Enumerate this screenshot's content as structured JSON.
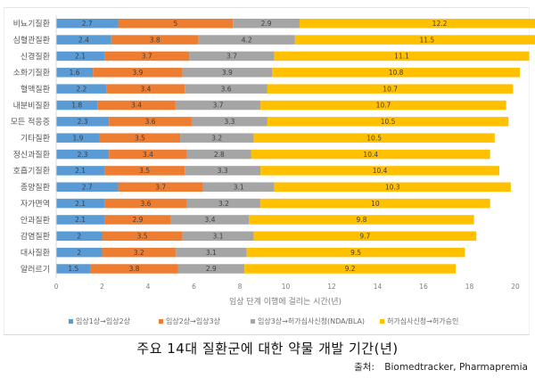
{
  "chart_data": {
    "type": "bar",
    "orientation": "horizontal",
    "stacked": true,
    "title": "주요 14대 질환군에 대한 약물 개발 기간(년)",
    "xlabel": "임상 단계 이행에 걸리는 시간(년)",
    "ylabel": "",
    "xlim": [
      0,
      20
    ],
    "xticks": [
      0,
      2,
      4,
      6,
      8,
      10,
      12,
      14,
      16,
      18,
      20
    ],
    "grid": false,
    "legend_position": "bottom",
    "categories": [
      "비뇨기질환",
      "심혈관질환",
      "신경질환",
      "소화기질환",
      "혈액질환",
      "내분비질환",
      "모든 적응증",
      "기타질환",
      "정신과질환",
      "호흡기질환",
      "종양질환",
      "자가면역",
      "안과질환",
      "감염질환",
      "대사질환",
      "알러르기"
    ],
    "series": [
      {
        "name": "임상1상→임상2상",
        "color": "#5b9bd5",
        "values": [
          2.7,
          2.4,
          2.1,
          1.6,
          2.2,
          1.8,
          2.3,
          1.9,
          2.3,
          2.1,
          2.7,
          2.1,
          2.1,
          2,
          2,
          1.5
        ]
      },
      {
        "name": "임상2상→임상3상",
        "color": "#ed7d31",
        "values": [
          5,
          3.8,
          3.7,
          3.9,
          3.4,
          3.4,
          3.6,
          3.5,
          3.4,
          3.5,
          3.7,
          3.6,
          2.9,
          3.5,
          3.2,
          3.8
        ]
      },
      {
        "name": "임상3상→허가심사신청(NDA/BLA)",
        "color": "#a5a5a5",
        "values": [
          2.9,
          4.2,
          3.7,
          3.9,
          3.6,
          3.7,
          3.3,
          3.2,
          2.8,
          3.3,
          3.1,
          3.2,
          3.4,
          3.1,
          3.1,
          2.9
        ]
      },
      {
        "name": "허가심사신청→허가승인",
        "color": "#ffc000",
        "values": [
          12.2,
          11.5,
          11.1,
          10.8,
          10.7,
          10.7,
          10.5,
          10.5,
          10.4,
          10.4,
          10.3,
          10,
          9.8,
          9.7,
          9.5,
          9.2
        ]
      }
    ]
  },
  "caption": "주요 14대 질환군에 대한 약물 개발 기간(년)",
  "source": {
    "label": "출처:",
    "text": "Biomedtracker, Pharmapremia"
  }
}
